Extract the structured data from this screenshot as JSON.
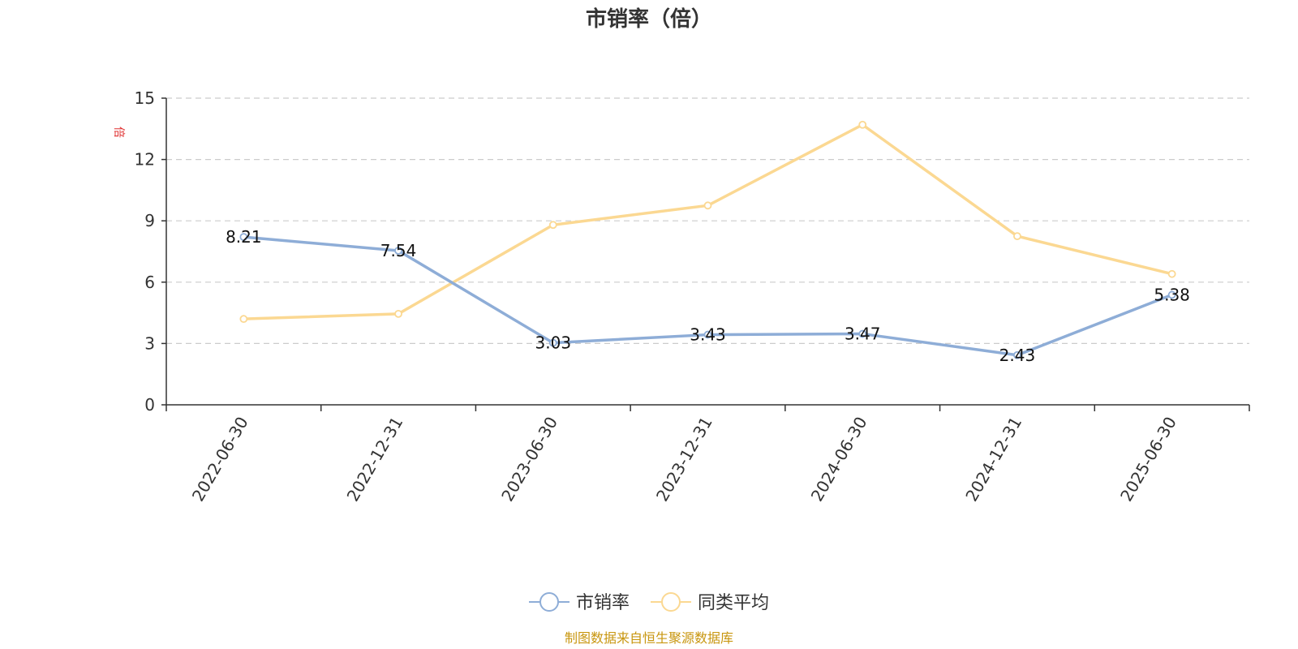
{
  "chart_data": {
    "type": "line",
    "title": "市销率（倍）",
    "ylabel": "倍",
    "ylim": [
      0,
      15
    ],
    "yticks": [
      0,
      3,
      6,
      9,
      12,
      15
    ],
    "grid": true,
    "legend_position": "bottom-center",
    "categories": [
      "2022-06-30",
      "2022-12-31",
      "2023-06-30",
      "2023-12-31",
      "2024-06-30",
      "2024-12-31",
      "2025-06-30"
    ],
    "series": [
      {
        "name": "市销率",
        "color": "#8eadd7",
        "values": [
          8.21,
          7.54,
          3.03,
          3.43,
          3.47,
          2.43,
          5.38
        ],
        "labels": [
          "8.21",
          "7.54",
          "3.03",
          "3.43",
          "3.47",
          "2.43",
          "5.38"
        ]
      },
      {
        "name": "同类平均",
        "color": "#fbd892",
        "values": [
          4.2,
          4.45,
          8.8,
          9.75,
          13.7,
          8.25,
          6.4
        ]
      }
    ]
  },
  "source": "制图数据来自恒生聚源数据库"
}
